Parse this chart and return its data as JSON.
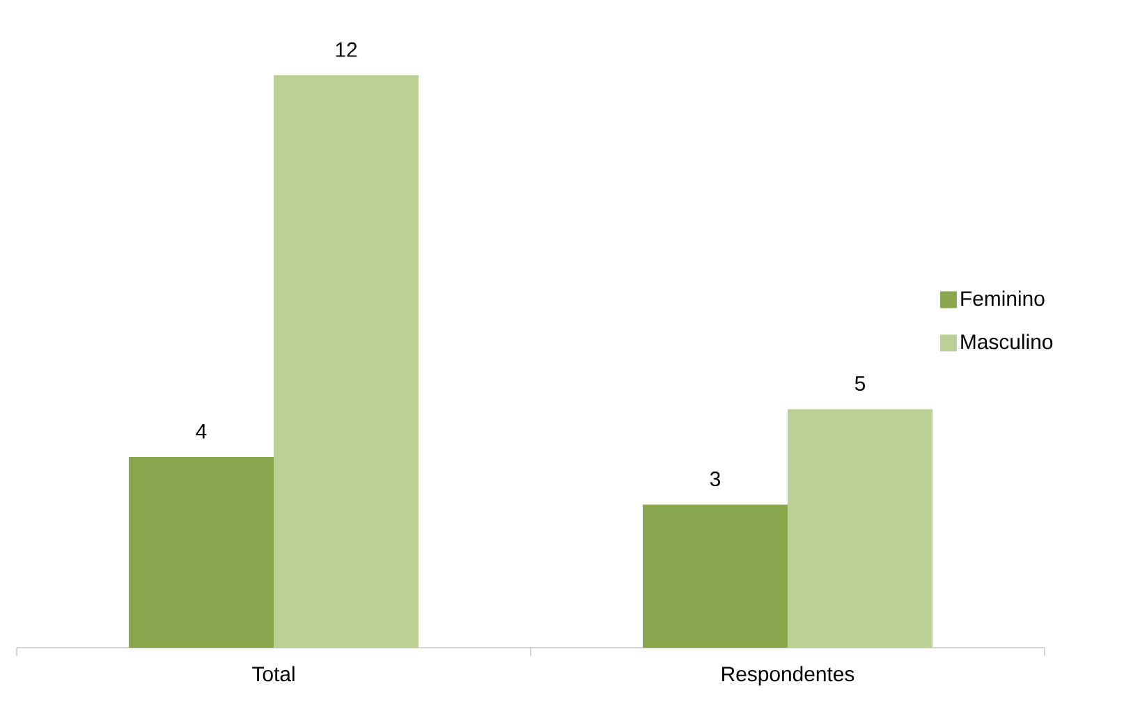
{
  "chart_data": {
    "type": "bar",
    "categories": [
      "Total",
      "Respondentes"
    ],
    "series": [
      {
        "name": "Feminino",
        "color": "#8aa64f",
        "values": [
          4,
          3
        ]
      },
      {
        "name": "Masculino",
        "color": "#bad097",
        "values": [
          12,
          5
        ]
      }
    ],
    "data_labels": true,
    "legend": "right"
  }
}
